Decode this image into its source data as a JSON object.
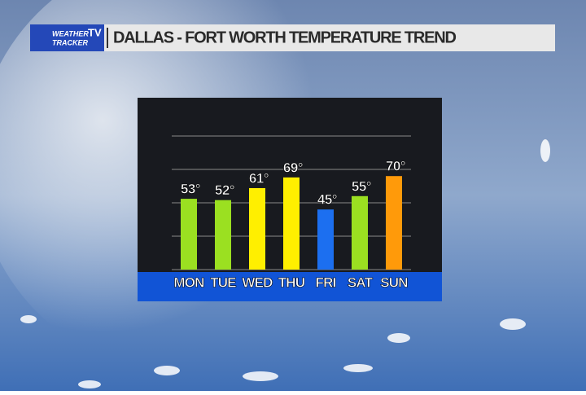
{
  "logo": {
    "lines": [
      "WEATHER",
      "TRACKER"
    ],
    "badge": "TV"
  },
  "chart_data": {
    "type": "bar",
    "title": "DALLAS - FORT WORTH TEMPERATURE TREND",
    "categories": [
      "MON",
      "TUE",
      "WED",
      "THU",
      "FRI",
      "SAT",
      "SUN"
    ],
    "values": [
      53,
      52,
      61,
      69,
      45,
      55,
      70
    ],
    "value_labels": [
      "53°",
      "52°",
      "61°",
      "69°",
      "45°",
      "55°",
      "70°"
    ],
    "colors": [
      "#9be021",
      "#9be021",
      "#ffef00",
      "#ffef00",
      "#1c6ff0",
      "#9be021",
      "#ff9a0a"
    ],
    "ylim": [
      0,
      100
    ],
    "yticks": [
      0,
      25,
      50,
      75,
      100
    ],
    "grid": true
  }
}
